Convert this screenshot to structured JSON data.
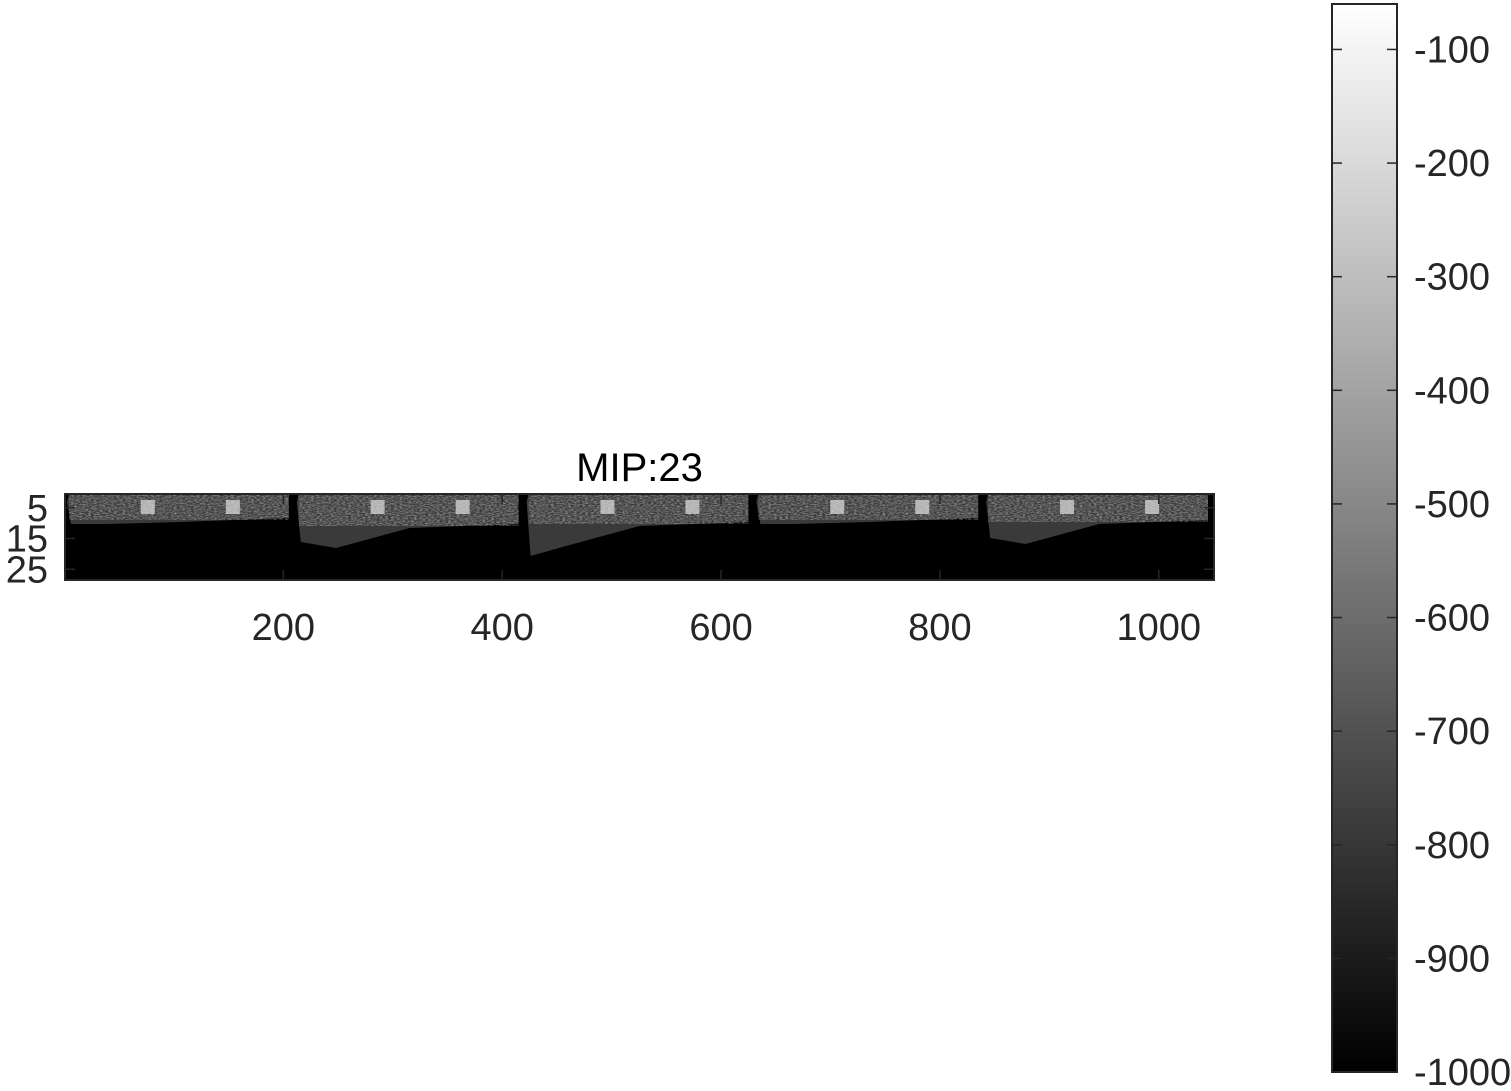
{
  "chart_data": {
    "type": "heatmap",
    "title": "MIP:23",
    "xlabel": "",
    "ylabel": "",
    "colormap": "gray",
    "image": {
      "x_range": [
        0.5,
        1050.5
      ],
      "y_range": [
        0.5,
        28.5
      ],
      "panel_count": 5,
      "panel_width": 210,
      "description_values": "intensity rendered in grayscale, dark background around -1000, bright structures toward -100"
    },
    "x_ticks": [
      200,
      400,
      600,
      800,
      1000
    ],
    "x_tick_labels": [
      "200",
      "400",
      "600",
      "800",
      "1000"
    ],
    "y_ticks": [
      5,
      15,
      25
    ],
    "y_tick_labels": [
      "5",
      "15",
      "25"
    ],
    "colorbar": {
      "range": [
        -1000,
        -60
      ],
      "ticks": [
        -100,
        -200,
        -300,
        -400,
        -500,
        -600,
        -700,
        -800,
        -900,
        -1000
      ],
      "tick_labels": [
        "-100",
        "-200",
        "-300",
        "-400",
        "-500",
        "-600",
        "-700",
        "-800",
        "-900",
        "-1000"
      ],
      "color_low": "#000000",
      "color_high": "#ffffff"
    }
  }
}
